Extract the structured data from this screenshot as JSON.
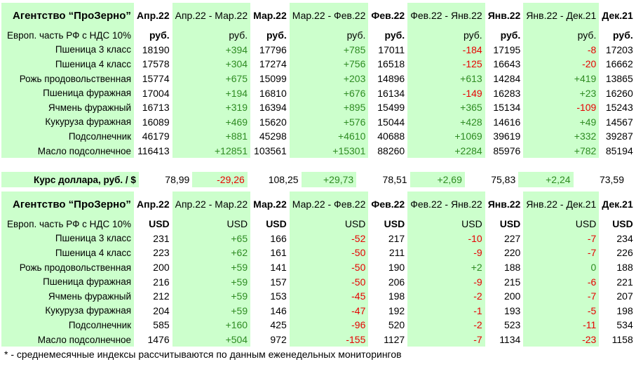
{
  "agency_title": "Агентство “ПроЗерно”",
  "region_label": "Европ. часть РФ с НДС 10%",
  "periods": [
    {
      "label": "Апр.22",
      "bold": true
    },
    {
      "label": "Апр.22 - Мар.22",
      "bold": false
    },
    {
      "label": "Мар.22",
      "bold": true
    },
    {
      "label": "Мар.22 - Фев.22",
      "bold": false
    },
    {
      "label": "Фев.22",
      "bold": true
    },
    {
      "label": "Фев.22 - Янв.22",
      "bold": false
    },
    {
      "label": "Янв.22",
      "bold": true
    },
    {
      "label": "Янв.22 - Дек.21",
      "bold": false
    },
    {
      "label": "Дек.21",
      "bold": true
    }
  ],
  "rub_units": [
    "руб.",
    "руб.",
    "руб.",
    "руб.",
    "руб.",
    "руб.",
    "руб.",
    "руб.",
    "руб."
  ],
  "rub_rows": [
    {
      "name": "Пшеница 3 класс",
      "cells": [
        "18190",
        "+394",
        "17796",
        "+785",
        "17011",
        "-184",
        "17195",
        "-8",
        "17203"
      ]
    },
    {
      "name": "Пшеница 4 класс",
      "cells": [
        "17578",
        "+304",
        "17274",
        "+756",
        "16518",
        "-125",
        "16643",
        "-20",
        "16662"
      ]
    },
    {
      "name": "Рожь продовольственная",
      "cells": [
        "15774",
        "+675",
        "15099",
        "+203",
        "14896",
        "+613",
        "14284",
        "+419",
        "13865"
      ]
    },
    {
      "name": "Пшеница фуражная",
      "cells": [
        "17004",
        "+194",
        "16810",
        "+676",
        "16134",
        "-149",
        "16283",
        "+23",
        "16260"
      ]
    },
    {
      "name": "Ячмень фуражный",
      "cells": [
        "16713",
        "+319",
        "16394",
        "+895",
        "15499",
        "+365",
        "15134",
        "-109",
        "15243"
      ]
    },
    {
      "name": "Кукуруза фуражная",
      "cells": [
        "16089",
        "+469",
        "15620",
        "+576",
        "15044",
        "+428",
        "14616",
        "+49",
        "14567"
      ]
    },
    {
      "name": "Подсолнечник",
      "cells": [
        "46179",
        "+881",
        "45298",
        "+4610",
        "40688",
        "+1069",
        "39619",
        "+332",
        "39287"
      ]
    },
    {
      "name": "Масло подсолнечное",
      "cells": [
        "116413",
        "+12851",
        "103561",
        "+15301",
        "88260",
        "+2284",
        "85976",
        "+782",
        "85194"
      ]
    }
  ],
  "exchange_rate": {
    "label": "Курс доллара, руб. / $",
    "cells": [
      "78,99",
      "-29,26",
      "108,25",
      "+29,73",
      "78,51",
      "+2,69",
      "75,83",
      "+2,24",
      "73,59"
    ]
  },
  "usd_units": [
    "USD",
    "USD",
    "USD",
    "USD",
    "USD",
    "USD",
    "USD",
    "USD",
    "USD"
  ],
  "usd_rows": [
    {
      "name": "Пшеница 3 класс",
      "cells": [
        "231",
        "+65",
        "166",
        "-52",
        "217",
        "-10",
        "227",
        "-7",
        "234"
      ]
    },
    {
      "name": "Пшеница 4 класс",
      "cells": [
        "223",
        "+62",
        "161",
        "-50",
        "211",
        "-9",
        "220",
        "-7",
        "226"
      ]
    },
    {
      "name": "Рожь продовольственная",
      "cells": [
        "200",
        "+59",
        "141",
        "-50",
        "190",
        "+2",
        "188",
        "0",
        "188"
      ]
    },
    {
      "name": "Пшеница фуражная",
      "cells": [
        "216",
        "+59",
        "157",
        "-50",
        "206",
        "-9",
        "215",
        "-6",
        "221"
      ]
    },
    {
      "name": "Ячмень фуражный",
      "cells": [
        "212",
        "+59",
        "153",
        "-45",
        "198",
        "-2",
        "200",
        "-7",
        "207"
      ]
    },
    {
      "name": "Кукуруза фуражная",
      "cells": [
        "204",
        "+59",
        "146",
        "-47",
        "192",
        "-1",
        "193",
        "-5",
        "198"
      ]
    },
    {
      "name": "Подсолнечник",
      "cells": [
        "585",
        "+160",
        "425",
        "-96",
        "520",
        "-2",
        "523",
        "-11",
        "534"
      ]
    },
    {
      "name": "Масло подсолнечное",
      "cells": [
        "1476",
        "+504",
        "972",
        "-155",
        "1127",
        "-7",
        "1134",
        "-23",
        "1158"
      ]
    }
  ],
  "footnote": "* - среднемесячные индексы рассчитываются по данным еженедельных мониторингов"
}
